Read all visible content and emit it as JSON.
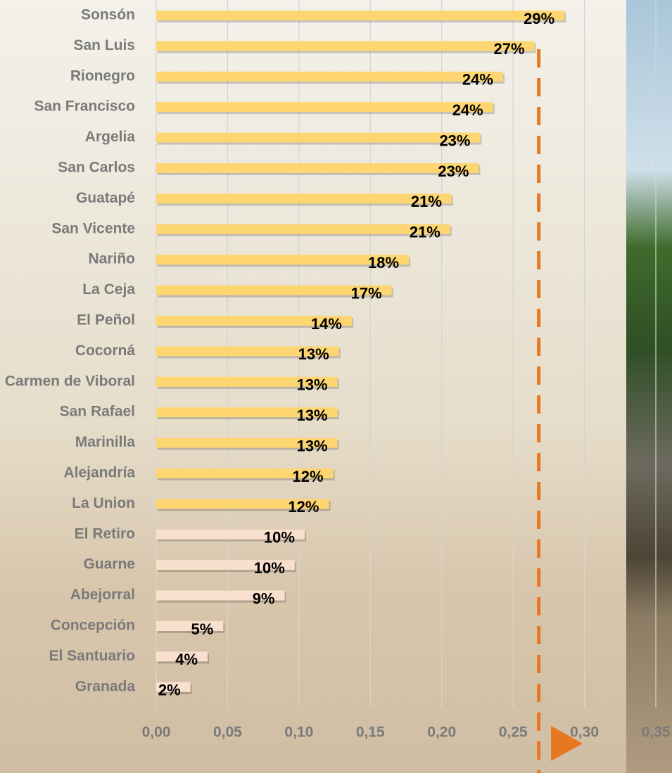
{
  "chart_data": {
    "type": "barh",
    "categories": [
      "Sonsón",
      "San Luis",
      "Rionegro",
      "San Francisco",
      "Argelia",
      "San Carlos",
      "Guatapé",
      "San Vicente",
      "Nariño",
      "La Ceja",
      "El Peñol",
      "Cocorná",
      "Carmen de Viboral",
      "San Rafael",
      "Marinilla",
      "Alejandría",
      "La Union",
      "El Retiro",
      "Guarne",
      "Abejorral",
      "Concepción",
      "El Santuario",
      "Granada"
    ],
    "values": [
      0.286,
      0.265,
      0.243,
      0.236,
      0.227,
      0.226,
      0.207,
      0.206,
      0.177,
      0.165,
      0.137,
      0.128,
      0.127,
      0.127,
      0.127,
      0.124,
      0.121,
      0.104,
      0.097,
      0.09,
      0.047,
      0.036,
      0.024
    ],
    "value_labels": [
      "29%",
      "27%",
      "24%",
      "24%",
      "23%",
      "23%",
      "21%",
      "21%",
      "18%",
      "17%",
      "14%",
      "13%",
      "13%",
      "13%",
      "13%",
      "12%",
      "12%",
      "10%",
      "10%",
      "9%",
      "5%",
      "4%",
      "2%"
    ],
    "colors": [
      "#fdd672",
      "#fdd672",
      "#fdd672",
      "#fdd672",
      "#fdd672",
      "#fdd672",
      "#fdd672",
      "#fdd672",
      "#fdd672",
      "#fdd672",
      "#fdd672",
      "#fdd672",
      "#fdd672",
      "#fdd672",
      "#fdd672",
      "#fdd672",
      "#fdd672",
      "#f9dfce",
      "#f9dfce",
      "#f9dfce",
      "#f9dfce",
      "#f9dfce",
      "#f9dfce"
    ],
    "xlim": [
      0,
      0.35
    ],
    "xticks": [
      {
        "value": 0,
        "label": "0,00"
      },
      {
        "value": 0.05,
        "label": "0,05"
      },
      {
        "value": 0.1,
        "label": "0,10"
      },
      {
        "value": 0.15,
        "label": "0,15"
      },
      {
        "value": 0.2,
        "label": "0,20"
      },
      {
        "value": 0.25,
        "label": "0,25"
      },
      {
        "value": 0.3,
        "label": "0,30"
      },
      {
        "value": 0.35,
        "label": "0,35"
      }
    ],
    "reference_line": 0.268,
    "reference_color": "#e87722",
    "grid": true
  }
}
